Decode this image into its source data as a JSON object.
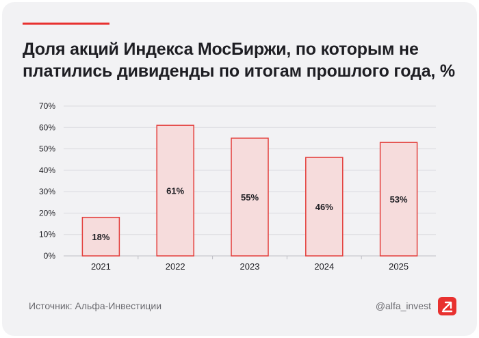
{
  "title_lines": [
    "Доля акций Индекса МосБиржи, по которым не",
    "платились дивиденды по итогам прошлого года, %"
  ],
  "footer": {
    "source": "Источник: Альфа-Инвестиции",
    "handle": "@alfa_invest"
  },
  "colors": {
    "accent": "#e8312f",
    "bar_fill": "#f6dcdc",
    "bar_stroke": "#e33d3a",
    "text": "#1e1e23",
    "muted": "#6b6b70",
    "grid": "#d9d9de",
    "card_bg": "#f2f2f4"
  },
  "logo_icon": "arrow-up-right-icon",
  "chart_data": {
    "type": "bar",
    "categories": [
      "2021",
      "2022",
      "2023",
      "2024",
      "2025"
    ],
    "values": [
      18,
      61,
      55,
      46,
      53
    ],
    "data_labels": [
      "18%",
      "61%",
      "55%",
      "46%",
      "53%"
    ],
    "yticks": [
      "0%",
      "10%",
      "20%",
      "30%",
      "40%",
      "50%",
      "60%",
      "70%"
    ],
    "ylim": [
      0,
      70
    ],
    "grid": true,
    "legend": "none"
  }
}
